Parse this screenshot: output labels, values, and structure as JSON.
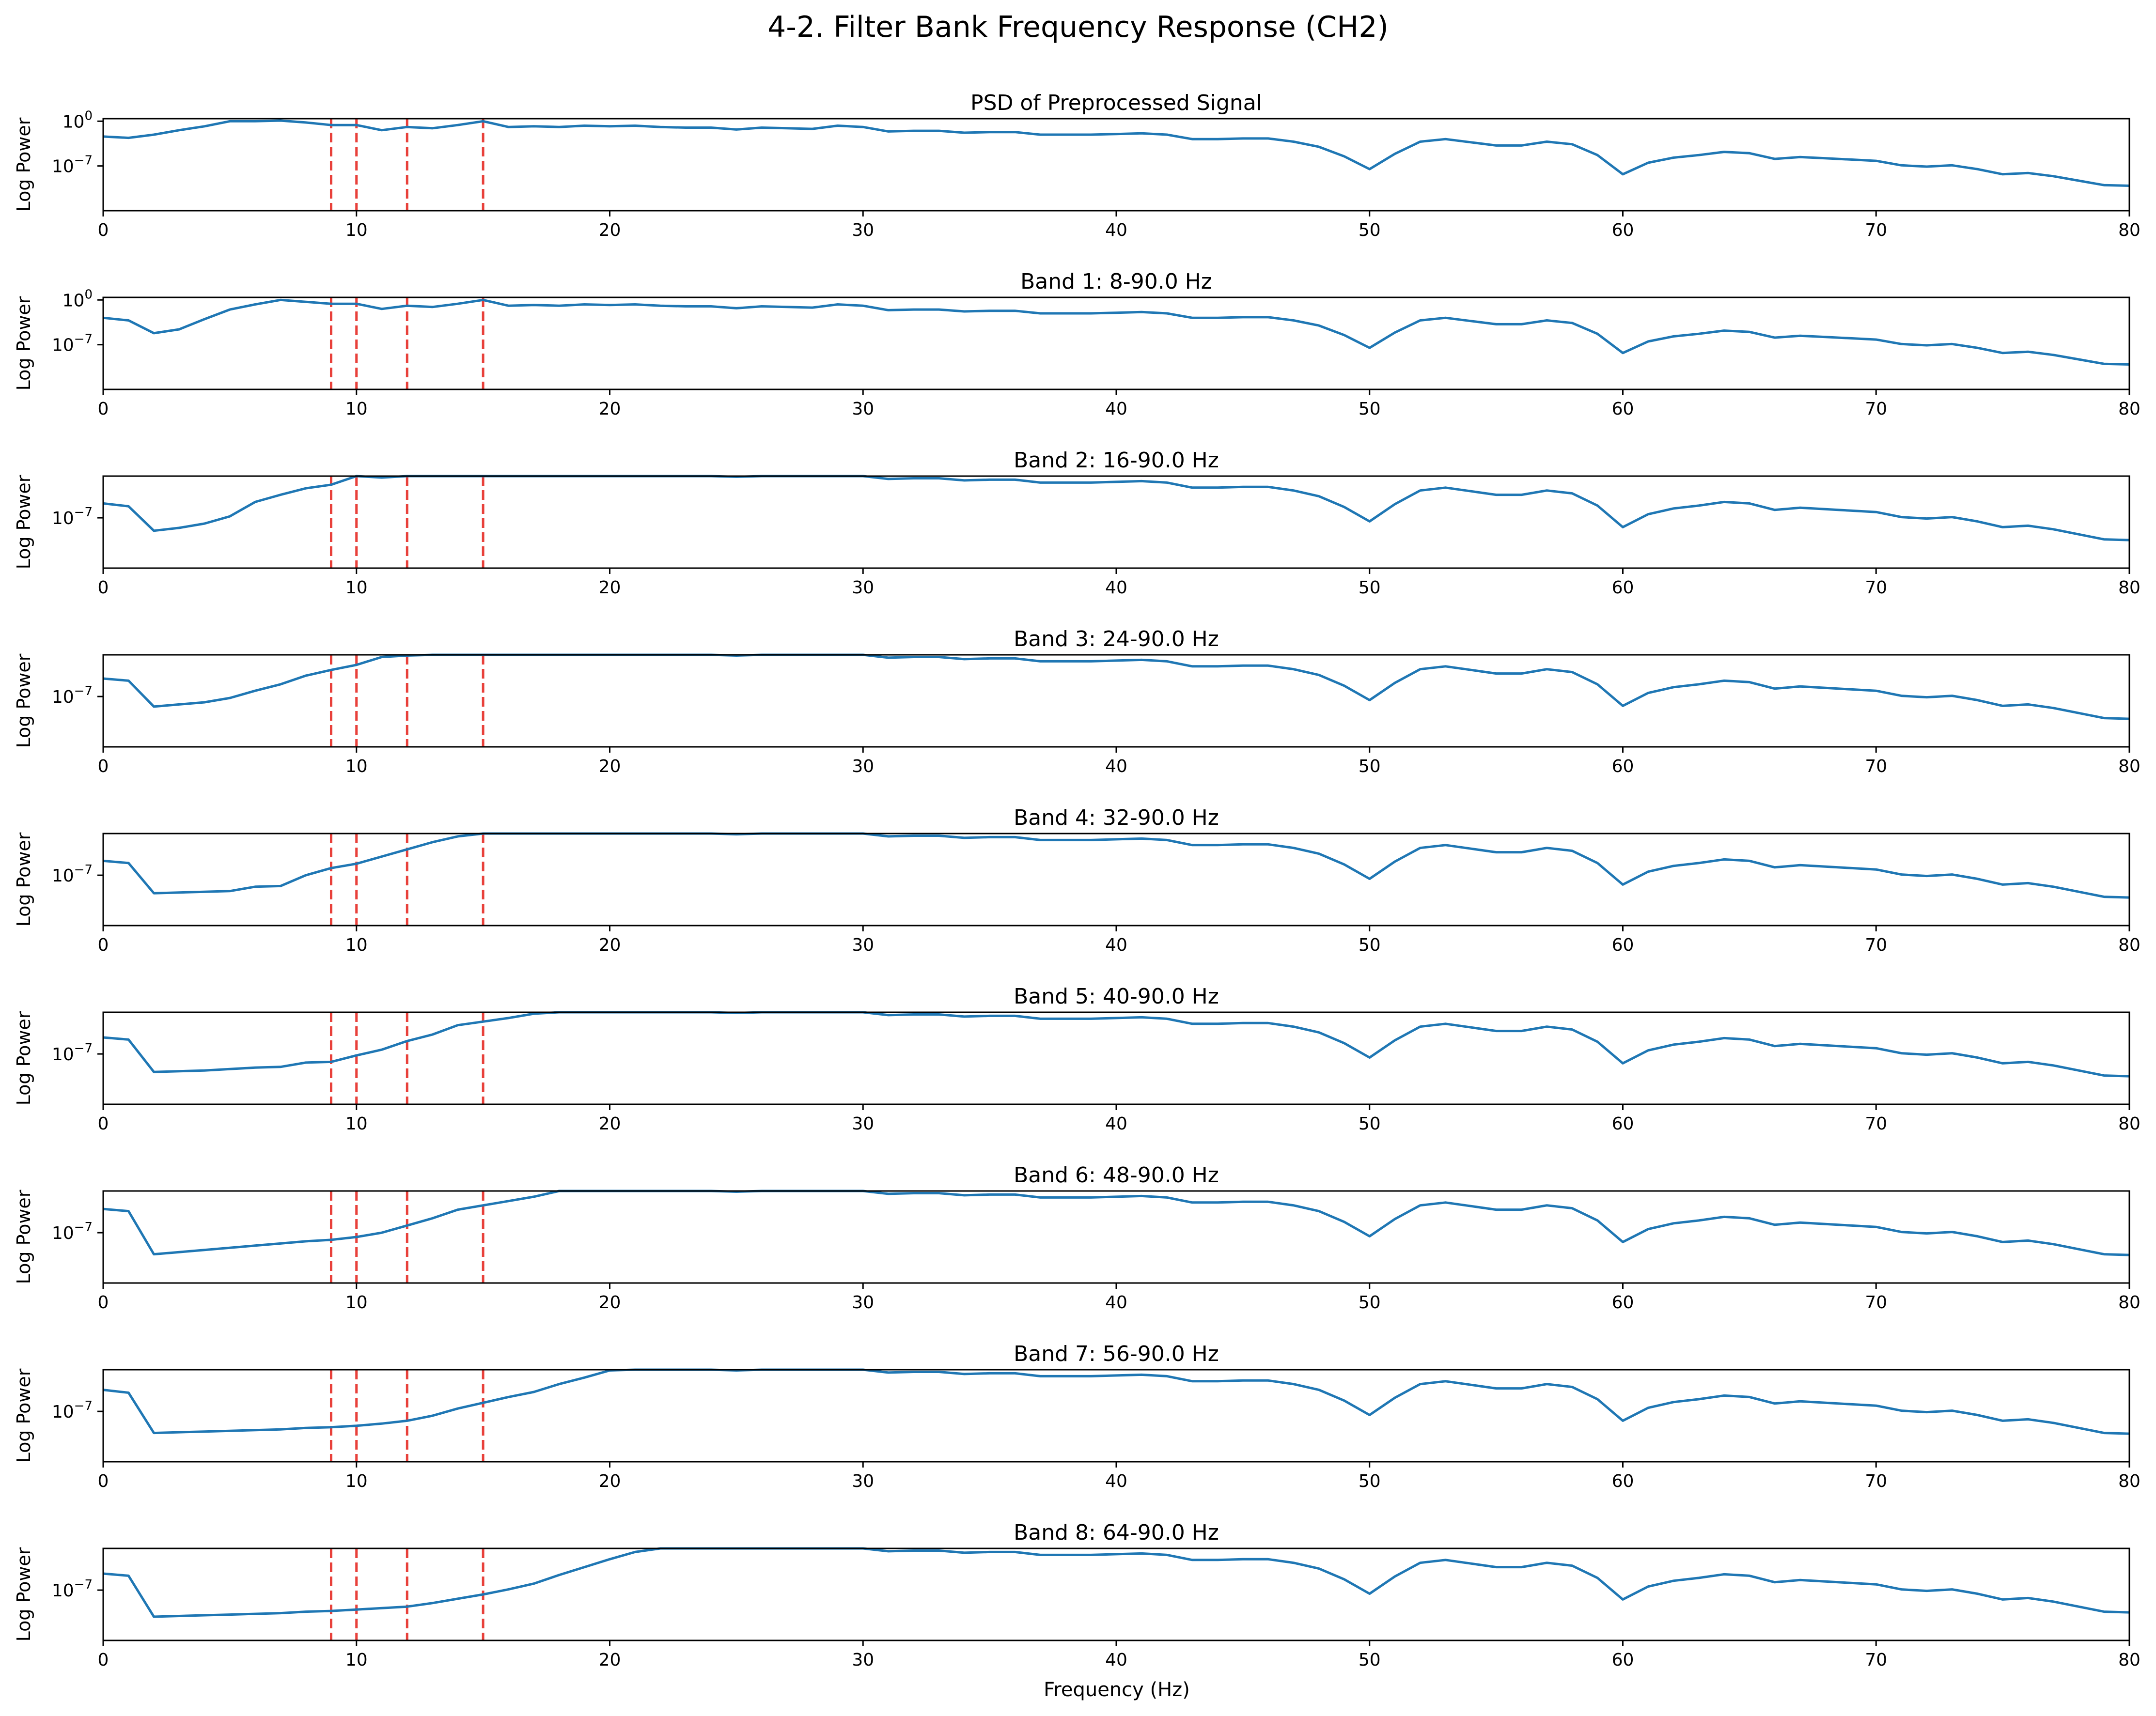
{
  "figure": {
    "title": "4-2. Filter Bank Frequency Response (CH2)",
    "xlabel": "Frequency (Hz)",
    "ylabel": "Log Power"
  },
  "colors": {
    "line": "#1f77b4",
    "marker": "#e8403a",
    "axes": "#000000"
  },
  "chart_data": [
    {
      "type": "line",
      "title": "PSD of Preprocessed Signal",
      "xlabel": "",
      "ylabel": "Log Power",
      "xlim": [
        0,
        80
      ],
      "ylog_lim": [
        -14,
        0.4
      ],
      "yticks": [
        {
          "exp": 0,
          "label": "10^0"
        },
        {
          "exp": -7,
          "label": "10^-7"
        }
      ],
      "xticks": [
        0,
        10,
        20,
        30,
        40,
        50,
        60,
        70,
        80
      ],
      "vlines": [
        9,
        10,
        12,
        15
      ],
      "low": [
        -2.4,
        -2.6,
        -2.1,
        -1.4,
        -0.8,
        0,
        0,
        0.1
      ],
      "grid": false
    },
    {
      "type": "line",
      "title": "Band 1: 8-90.0 Hz",
      "xlabel": "",
      "ylabel": "Log Power",
      "xlim": [
        0,
        80
      ],
      "ylog_lim": [
        -14,
        0.4
      ],
      "yticks": [
        {
          "exp": 0,
          "label": "10^0"
        },
        {
          "exp": -7,
          "label": "10^-7"
        }
      ],
      "xticks": [
        0,
        10,
        20,
        30,
        40,
        50,
        60,
        70,
        80
      ],
      "vlines": [
        9,
        10,
        12,
        15
      ],
      "low": [
        -2.8,
        -3.2,
        -5.2,
        -4.6,
        -3.0,
        -1.5,
        -0.7,
        0.0,
        -0.3
      ],
      "grid": false
    },
    {
      "type": "line",
      "title": "Band 2: 16-90.0 Hz",
      "xlabel": "",
      "ylabel": "Log Power",
      "xlim": [
        0,
        80
      ],
      "ylog_lim": [
        -14,
        -1.2
      ],
      "yticks": [
        {
          "exp": -7,
          "label": "10^-7"
        }
      ],
      "xticks": [
        0,
        10,
        20,
        30,
        40,
        50,
        60,
        70,
        80
      ],
      "vlines": [
        9,
        10,
        12,
        15
      ],
      "low": [
        -5.0,
        -5.4,
        -8.8,
        -8.4,
        -7.8,
        -6.8,
        -4.8,
        -3.8,
        -2.9,
        -2.4
      ],
      "grid": false
    },
    {
      "type": "line",
      "title": "Band 3: 24-90.0 Hz",
      "xlabel": "",
      "ylabel": "Log Power",
      "xlim": [
        0,
        80
      ],
      "ylog_lim": [
        -14,
        -1.2
      ],
      "yticks": [
        {
          "exp": -7,
          "label": "10^-7"
        }
      ],
      "xticks": [
        0,
        10,
        20,
        30,
        40,
        50,
        60,
        70,
        80
      ],
      "vlines": [
        9,
        10,
        12,
        15
      ],
      "low": [
        -4.5,
        -4.8,
        -8.4,
        -8.1,
        -7.8,
        -7.2,
        -6.2,
        -5.3,
        -4.1,
        -3.3,
        -2.6,
        -1.5,
        -1.3,
        -0.8
      ],
      "grid": false
    },
    {
      "type": "line",
      "title": "Band 4: 32-90.0 Hz",
      "xlabel": "",
      "ylabel": "Log Power",
      "xlim": [
        0,
        80
      ],
      "ylog_lim": [
        -14,
        -1.2
      ],
      "yticks": [
        {
          "exp": -7,
          "label": "10^-7"
        }
      ],
      "xticks": [
        0,
        10,
        20,
        30,
        40,
        50,
        60,
        70,
        80
      ],
      "vlines": [
        9,
        10,
        12,
        15
      ],
      "low": [
        -5.0,
        -5.3,
        -9.5,
        -9.4,
        -9.3,
        -9.2,
        -8.6,
        -8.5,
        -7.0,
        -6.0,
        -5.4,
        -4.4,
        -3.4,
        -2.4,
        -1.6,
        -1.0
      ],
      "grid": false
    },
    {
      "type": "line",
      "title": "Band 5: 40-90.0 Hz",
      "xlabel": "",
      "ylabel": "Log Power",
      "xlim": [
        0,
        80
      ],
      "ylog_lim": [
        -14,
        -1.2
      ],
      "yticks": [
        {
          "exp": -7,
          "label": "10^-7"
        }
      ],
      "xticks": [
        0,
        10,
        20,
        30,
        40,
        50,
        60,
        70,
        80
      ],
      "vlines": [
        9,
        10,
        12,
        15
      ],
      "low": [
        -4.7,
        -5.0,
        -9.5,
        -9.4,
        -9.3,
        -9.1,
        -8.9,
        -8.8,
        -8.2,
        -8.1,
        -7.2,
        -6.4,
        -5.2,
        -4.3,
        -3.0,
        -2.5,
        -2.0,
        -1.4,
        -0.8,
        -0.6,
        -0.5,
        -0.4
      ],
      "grid": false
    },
    {
      "type": "line",
      "title": "Band 6: 48-90.0 Hz",
      "xlabel": "",
      "ylabel": "Log Power",
      "xlim": [
        0,
        80
      ],
      "ylog_lim": [
        -14,
        -1.2
      ],
      "yticks": [
        {
          "exp": -7,
          "label": "10^-7"
        }
      ],
      "xticks": [
        0,
        10,
        20,
        30,
        40,
        50,
        60,
        70,
        80
      ],
      "vlines": [
        9,
        10,
        12,
        15
      ],
      "low": [
        -3.7,
        -4.0,
        -10.0,
        -9.7,
        -9.4,
        -9.1,
        -8.8,
        -8.5,
        -8.2,
        -8.0,
        -7.6,
        -7.0,
        -6.0,
        -5.0,
        -3.8,
        -3.2,
        -2.6,
        -2.0,
        -1.2,
        -0.6,
        -0.2,
        0.1,
        0.0,
        0.2
      ],
      "grid": false
    },
    {
      "type": "line",
      "title": "Band 7: 56-90.0 Hz",
      "xlabel": "",
      "ylabel": "Log Power",
      "xlim": [
        0,
        80
      ],
      "ylog_lim": [
        -14,
        -1.2
      ],
      "yticks": [
        {
          "exp": -7,
          "label": "10^-7"
        }
      ],
      "xticks": [
        0,
        10,
        20,
        30,
        40,
        50,
        60,
        70,
        80
      ],
      "vlines": [
        9,
        10,
        12,
        15
      ],
      "low": [
        -4.0,
        -4.4,
        -10.0,
        -9.9,
        -9.8,
        -9.7,
        -9.6,
        -9.5,
        -9.3,
        -9.2,
        -9.0,
        -8.7,
        -8.3,
        -7.6,
        -6.6,
        -5.8,
        -5.0,
        -4.3,
        -3.2,
        -2.3,
        -1.3,
        -0.3,
        0.4,
        0.9,
        1.6
      ],
      "grid": false
    },
    {
      "type": "line",
      "title": "Band 8: 64-90.0 Hz",
      "xlabel": "Frequency (Hz)",
      "ylabel": "Log Power",
      "xlim": [
        0,
        80
      ],
      "ylog_lim": [
        -14,
        -1.2
      ],
      "yticks": [
        {
          "exp": -7,
          "label": "10^-7"
        }
      ],
      "xticks": [
        0,
        10,
        20,
        30,
        40,
        50,
        60,
        70,
        80
      ],
      "vlines": [
        9,
        10,
        12,
        15
      ],
      "low": [
        -4.7,
        -5.0,
        -10.7,
        -10.6,
        -10.5,
        -10.4,
        -10.3,
        -10.2,
        -10.0,
        -9.9,
        -9.7,
        -9.5,
        -9.3,
        -8.8,
        -8.2,
        -7.6,
        -6.9,
        -6.1,
        -4.9,
        -3.8,
        -2.7,
        -1.7,
        -0.8,
        0.0,
        0.6,
        1.1,
        1.5
      ],
      "grid": false
    }
  ],
  "shared_tail": {
    "x_start": 0,
    "values": [
      -2.4,
      -2.6,
      -2.1,
      -1.4,
      -0.8,
      0.0,
      0.0,
      0.1,
      -0.2,
      -0.6,
      -0.6,
      -1.4,
      -0.9,
      -1.1,
      -0.6,
      0.0,
      -0.9,
      -0.8,
      -0.9,
      -0.7,
      -0.8,
      -0.7,
      -0.9,
      -1.0,
      -1.0,
      -1.3,
      -1.0,
      -1.1,
      -1.2,
      -0.7,
      -0.9,
      -1.6,
      -1.5,
      -1.5,
      -1.8,
      -1.7,
      -1.7,
      -2.1,
      -2.1,
      -2.1,
      -2.0,
      -1.9,
      -2.1,
      -2.8,
      -2.8,
      -2.7,
      -2.7,
      -3.2,
      -4.0,
      -5.5,
      -7.5,
      -5.1,
      -3.2,
      -2.8,
      -3.3,
      -3.8,
      -3.8,
      -3.2,
      -3.6,
      -5.3,
      -8.3,
      -6.5,
      -5.7,
      -5.3,
      -4.8,
      -5.0,
      -5.9,
      -5.6,
      -5.8,
      -6.0,
      -6.2,
      -6.9,
      -7.1,
      -6.9,
      -7.5,
      -8.3,
      -8.1,
      -8.6,
      -9.3,
      -10.0,
      -10.1
    ]
  }
}
